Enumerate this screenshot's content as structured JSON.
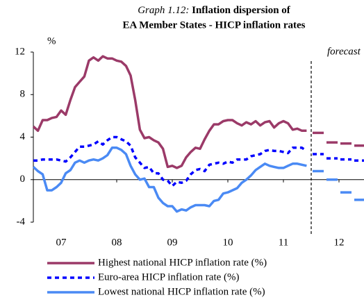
{
  "chart_data": {
    "type": "line",
    "title_label": "Graph 1.12:",
    "title": [
      "Inflation dispersion of",
      "EA Member States - HICP inflation rates"
    ],
    "ylabel": "%",
    "annotation": "forecast",
    "forecast_start": 2012,
    "xlim": [
      2007,
      2013
    ],
    "xticks": [
      {
        "value": 2007.5,
        "label": "07"
      },
      {
        "value": 2008.5,
        "label": "08"
      },
      {
        "value": 2009.5,
        "label": "09"
      },
      {
        "value": 2010.5,
        "label": "10"
      },
      {
        "value": 2011.5,
        "label": "11"
      },
      {
        "value": 2012.5,
        "label": "12"
      }
    ],
    "ylim": [
      -4,
      12
    ],
    "yticks": [
      -4,
      0,
      4,
      8,
      12
    ],
    "x": [
      2007,
      2007.083,
      2007.167,
      2007.25,
      2007.333,
      2007.417,
      2007.5,
      2007.583,
      2007.667,
      2007.75,
      2007.833,
      2007.917,
      2008,
      2008.083,
      2008.167,
      2008.25,
      2008.333,
      2008.417,
      2008.5,
      2008.583,
      2008.667,
      2008.75,
      2008.833,
      2008.917,
      2009,
      2009.083,
      2009.167,
      2009.25,
      2009.333,
      2009.417,
      2009.5,
      2009.583,
      2009.667,
      2009.75,
      2009.833,
      2009.917,
      2010,
      2010.083,
      2010.167,
      2010.25,
      2010.333,
      2010.417,
      2010.5,
      2010.583,
      2010.667,
      2010.75,
      2010.833,
      2010.917,
      2011,
      2011.083,
      2011.167,
      2011.25,
      2011.333,
      2011.417,
      2011.5,
      2011.583,
      2011.667,
      2011.75,
      2011.833,
      2011.917
    ],
    "forecast_x": [
      2012.125,
      2012.375,
      2012.625,
      2012.875
    ],
    "series": [
      {
        "name": "Highest national HICP inflation rate (%)",
        "color": "#9b3a68",
        "dash": false,
        "values": [
          5.0,
          4.6,
          5.6,
          5.6,
          5.8,
          5.9,
          6.5,
          6.1,
          7.5,
          8.7,
          9.2,
          9.7,
          11.2,
          11.5,
          11.2,
          11.6,
          11.4,
          11.4,
          11.2,
          11.1,
          10.7,
          9.8,
          7.5,
          4.7,
          3.9,
          4.0,
          3.7,
          3.5,
          2.9,
          1.2,
          1.3,
          1.1,
          1.3,
          2.1,
          2.6,
          3.0,
          2.9,
          3.8,
          4.6,
          5.2,
          5.2,
          5.5,
          5.6,
          5.6,
          5.3,
          5.1,
          5.4,
          5.2,
          5.5,
          5.1,
          5.4,
          5.5,
          4.9,
          5.3,
          5.5,
          5.3,
          4.7,
          4.8,
          4.6,
          4.6
        ],
        "forecast": [
          4.4,
          3.5,
          3.4,
          3.2
        ]
      },
      {
        "name": "Euro-area HICP inflation rate (%)",
        "color": "#0000ff",
        "dash": true,
        "values": [
          1.8,
          1.8,
          1.9,
          1.9,
          1.9,
          1.9,
          1.8,
          1.7,
          2.1,
          2.6,
          3.1,
          3.1,
          3.2,
          3.3,
          3.6,
          3.3,
          3.7,
          4.0,
          4.0,
          3.8,
          3.6,
          3.2,
          2.1,
          1.6,
          1.1,
          1.2,
          0.6,
          0.6,
          0.0,
          -0.1,
          -0.6,
          -0.2,
          -0.3,
          -0.1,
          0.5,
          0.9,
          1.0,
          0.8,
          1.4,
          1.5,
          1.6,
          1.5,
          1.7,
          1.6,
          1.9,
          1.9,
          1.9,
          2.2,
          2.3,
          2.4,
          2.7,
          2.8,
          2.7,
          2.7,
          2.6,
          2.5,
          3.0,
          3.0,
          3.0,
          2.7
        ],
        "forecast": [
          2.4,
          2.0,
          1.9,
          1.8
        ]
      },
      {
        "name": "Lowest national HICP inflation rate (%)",
        "color": "#4a8af4",
        "dash": false,
        "values": [
          1.2,
          0.8,
          0.5,
          -1.0,
          -1.0,
          -0.7,
          -0.3,
          0.6,
          0.9,
          1.6,
          1.8,
          1.6,
          1.8,
          1.9,
          1.8,
          2.0,
          2.3,
          3.0,
          3.0,
          2.8,
          2.4,
          1.3,
          0.5,
          0.0,
          0.1,
          -0.7,
          -0.7,
          -1.7,
          -2.2,
          -2.5,
          -2.5,
          -3.0,
          -2.8,
          -2.9,
          -2.6,
          -2.4,
          -2.4,
          -2.4,
          -2.5,
          -2.0,
          -1.9,
          -1.3,
          -1.2,
          -1.0,
          -0.8,
          -0.3,
          0.0,
          0.4,
          0.9,
          1.2,
          1.5,
          1.3,
          1.2,
          1.1,
          1.1,
          1.3,
          1.5,
          1.5,
          1.4,
          1.3
        ],
        "forecast": [
          0.8,
          0.0,
          -1.2,
          -1.9
        ]
      }
    ]
  }
}
